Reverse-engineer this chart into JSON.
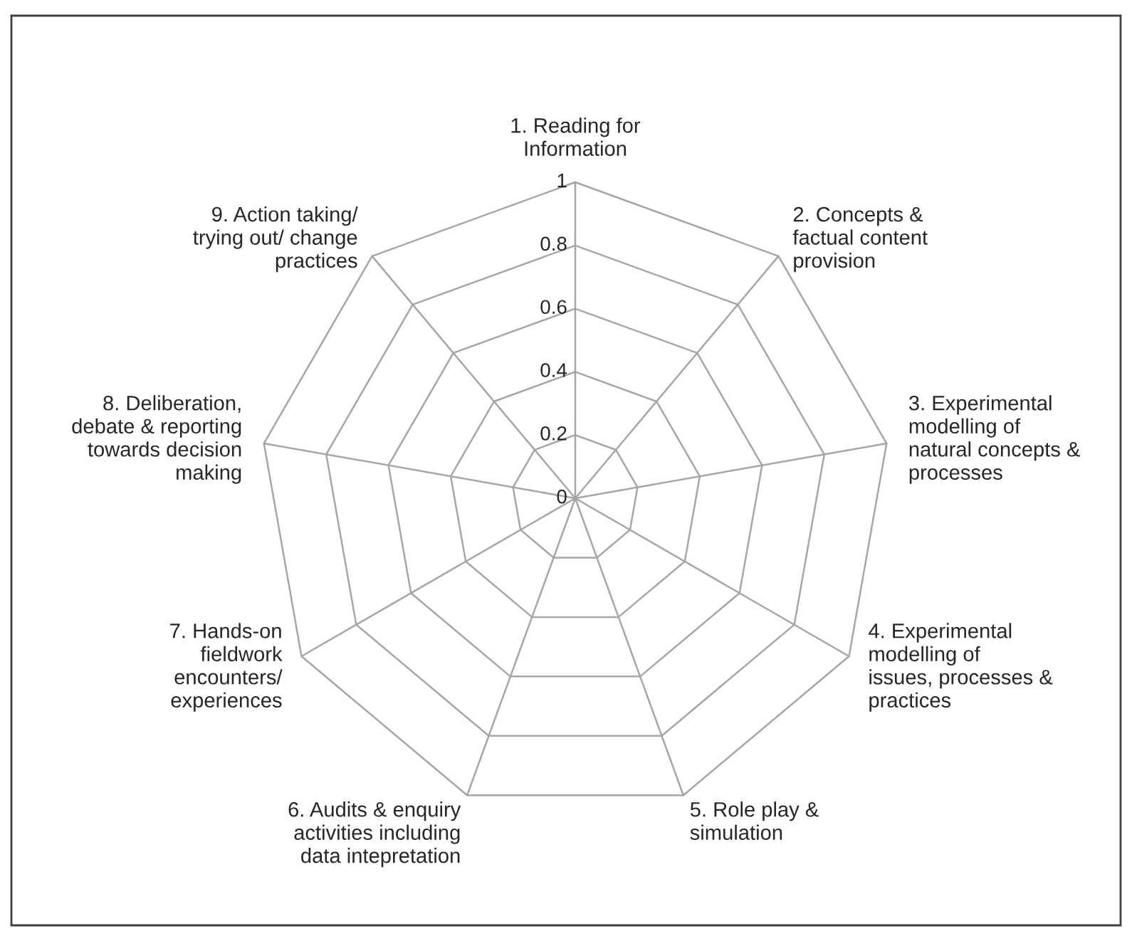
{
  "chart_data": {
    "type": "radar",
    "categories": [
      "1. Reading for\nInformation",
      "2. Concepts &\nfactual content\nprovision",
      "3. Experimental\nmodelling of\nnatural concepts &\nprocesses",
      "4. Experimental\nmodelling of\nissues, processes &\npractices",
      "5. Role play &\nsimulation",
      "6. Audits & enquiry\nactivities including\ndata intepretation",
      "7. Hands-on\nfieldwork\nencounters/\nexperiences",
      "8. Deliberation,\ndebate & reporting\ntowards decision\nmaking",
      "9. Action taking/\ntrying out/ change\npractices"
    ],
    "ylim": [
      0,
      1
    ],
    "yticks": [
      0,
      0.2,
      0.4,
      0.6,
      0.8,
      1
    ],
    "grid": true
  }
}
